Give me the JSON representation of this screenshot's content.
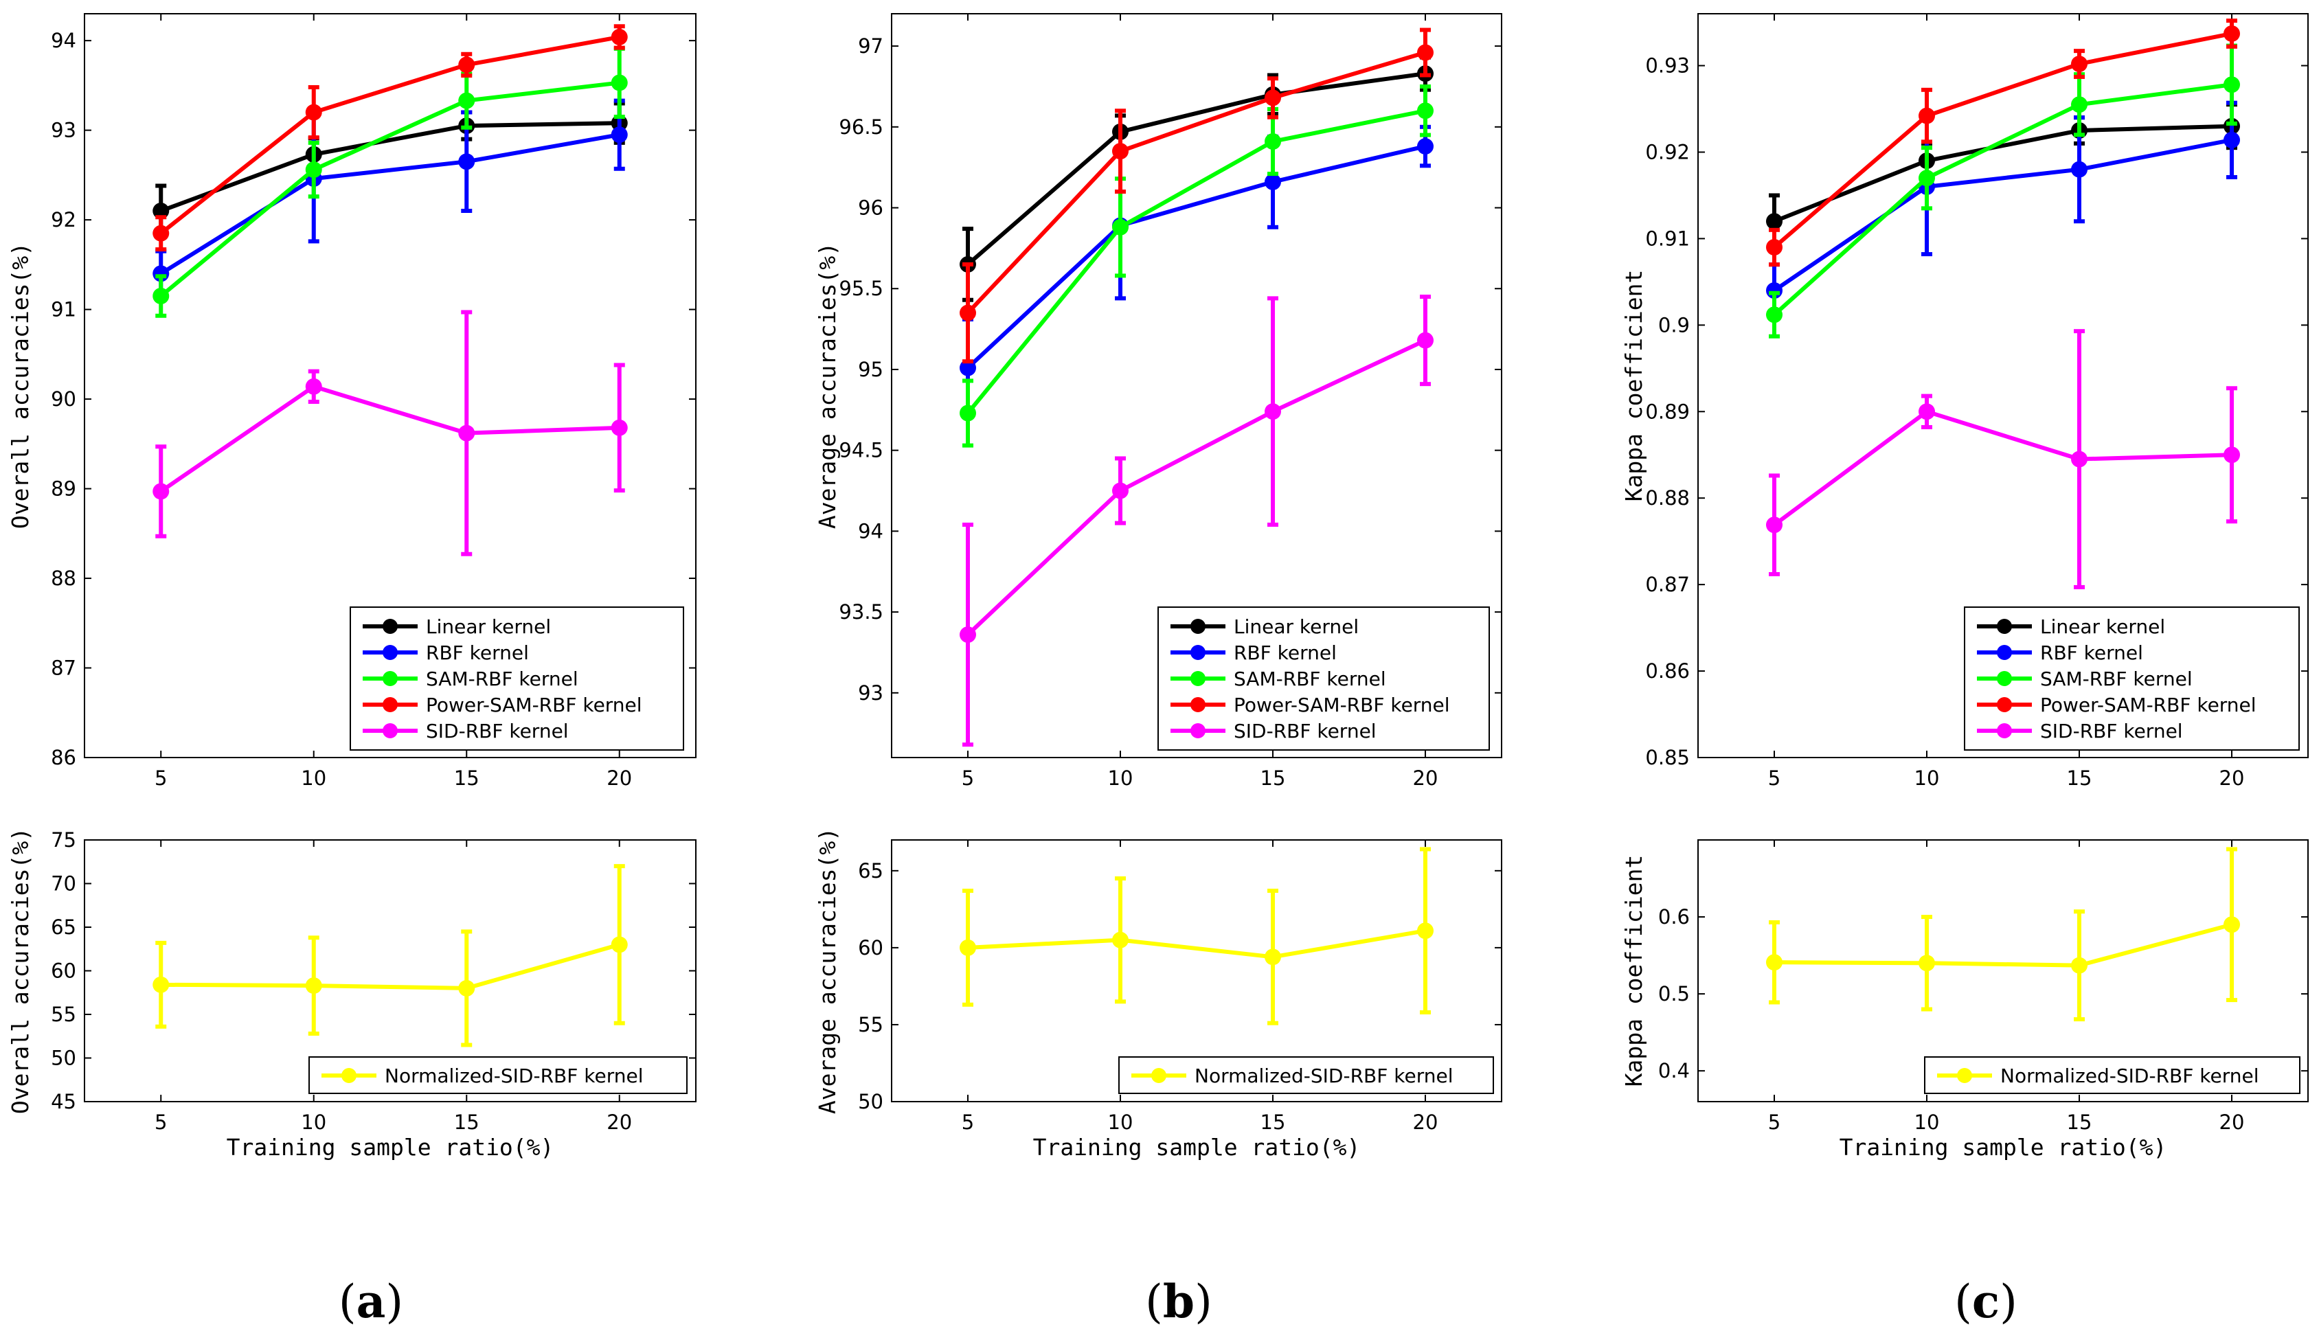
{
  "colors": {
    "Linear kernel": "#000000",
    "RBF kernel": "#0000ff",
    "SAM-RBF kernel": "#00ff00",
    "Power-SAM-RBF kernel": "#ff0000",
    "SID-RBF kernel": "#ff00ff",
    "Normalized-SID-RBF kernel": "#ffff00"
  },
  "captions": [
    {
      "open": "(",
      "letter": "a",
      "close": ")"
    },
    {
      "open": "(",
      "letter": "b",
      "close": ")"
    },
    {
      "open": "(",
      "letter": "c",
      "close": ")"
    }
  ],
  "chart_data": [
    {
      "id": "a-top",
      "type": "line",
      "ylabel": "Overall accuracies(%)",
      "xlabel": "",
      "x": [
        5,
        10,
        15,
        20
      ],
      "xlim": [
        2.5,
        22.5
      ],
      "ylim": [
        86,
        94.3
      ],
      "yticks": [
        86,
        87,
        88,
        89,
        90,
        91,
        92,
        93,
        94
      ],
      "ytick_labels": [
        "86",
        "87",
        "88",
        "89",
        "90",
        "91",
        "92",
        "93",
        "94"
      ],
      "xtick_labels": [
        "5",
        "10",
        "15",
        "20"
      ],
      "legend": "lower-right",
      "series": [
        {
          "name": "Linear kernel",
          "values": [
            92.1,
            92.73,
            93.05,
            93.08
          ],
          "err": [
            0.28,
            0.18,
            0.15,
            0.22
          ]
        },
        {
          "name": "RBF kernel",
          "values": [
            91.4,
            92.46,
            92.65,
            92.95
          ],
          "err": [
            0.25,
            0.7,
            0.55,
            0.38
          ]
        },
        {
          "name": "SAM-RBF kernel",
          "values": [
            91.15,
            92.56,
            93.33,
            93.53
          ],
          "err": [
            0.22,
            0.3,
            0.3,
            0.38
          ]
        },
        {
          "name": "Power-SAM-RBF kernel",
          "values": [
            91.85,
            93.2,
            93.73,
            94.04
          ],
          "err": [
            0.18,
            0.28,
            0.12,
            0.12
          ]
        },
        {
          "name": "SID-RBF kernel",
          "values": [
            88.97,
            90.14,
            89.62,
            89.68
          ],
          "err": [
            0.5,
            0.17,
            1.35,
            0.7
          ]
        }
      ]
    },
    {
      "id": "a-bottom",
      "type": "line",
      "ylabel": "Overall accuracies(%)",
      "xlabel": "Training sample ratio(%)",
      "x": [
        5,
        10,
        15,
        20
      ],
      "xlim": [
        2.5,
        22.5
      ],
      "ylim": [
        45,
        75
      ],
      "yticks": [
        45,
        50,
        55,
        60,
        65,
        70,
        75
      ],
      "ytick_labels": [
        "45",
        "50",
        "55",
        "60",
        "65",
        "70",
        "75"
      ],
      "xtick_labels": [
        "5",
        "10",
        "15",
        "20"
      ],
      "legend": "bottom-right",
      "series": [
        {
          "name": "Normalized-SID-RBF kernel",
          "values": [
            58.4,
            58.3,
            58.0,
            63.0
          ],
          "err": [
            4.8,
            5.5,
            6.5,
            9.0
          ]
        }
      ]
    },
    {
      "id": "b-top",
      "type": "line",
      "ylabel": "Average accuracies(%)",
      "xlabel": "",
      "x": [
        5,
        10,
        15,
        20
      ],
      "xlim": [
        2.5,
        22.5
      ],
      "ylim": [
        92.6,
        97.2
      ],
      "yticks": [
        93,
        93.5,
        94,
        94.5,
        95,
        95.5,
        96,
        96.5,
        97
      ],
      "ytick_labels": [
        "93",
        "93.5",
        "94",
        "94.5",
        "95",
        "95.5",
        "96",
        "96.5",
        "97"
      ],
      "xtick_labels": [
        "5",
        "10",
        "15",
        "20"
      ],
      "legend": "lower-right",
      "series": [
        {
          "name": "Linear kernel",
          "values": [
            95.65,
            96.47,
            96.7,
            96.83
          ],
          "err": [
            0.22,
            0.1,
            0.12,
            0.1
          ]
        },
        {
          "name": "RBF kernel",
          "values": [
            95.01,
            95.89,
            96.16,
            96.38
          ],
          "err": [
            0.3,
            0.45,
            0.28,
            0.12
          ]
        },
        {
          "name": "SAM-RBF kernel",
          "values": [
            94.73,
            95.88,
            96.41,
            96.6
          ],
          "err": [
            0.2,
            0.3,
            0.2,
            0.15
          ]
        },
        {
          "name": "Power-SAM-RBF kernel",
          "values": [
            95.35,
            96.35,
            96.68,
            96.96
          ],
          "err": [
            0.3,
            0.25,
            0.12,
            0.14
          ]
        },
        {
          "name": "SID-RBF kernel",
          "values": [
            93.36,
            94.25,
            94.74,
            95.18
          ],
          "err": [
            0.68,
            0.2,
            0.7,
            0.27
          ]
        }
      ]
    },
    {
      "id": "b-bottom",
      "type": "line",
      "ylabel": "Average accuracies(%)",
      "xlabel": "Training sample ratio(%)",
      "x": [
        5,
        10,
        15,
        20
      ],
      "xlim": [
        2.5,
        22.5
      ],
      "ylim": [
        50,
        67
      ],
      "yticks": [
        50,
        55,
        60,
        65
      ],
      "ytick_labels": [
        "50",
        "55",
        "60",
        "65"
      ],
      "xtick_labels": [
        "5",
        "10",
        "15",
        "20"
      ],
      "legend": "bottom-right",
      "series": [
        {
          "name": "Normalized-SID-RBF kernel",
          "values": [
            60.0,
            60.5,
            59.4,
            61.1
          ],
          "err": [
            3.7,
            4.0,
            4.3,
            5.3
          ]
        }
      ]
    },
    {
      "id": "c-top",
      "type": "line",
      "ylabel": "Kappa coefficient",
      "xlabel": "",
      "x": [
        5,
        10,
        15,
        20
      ],
      "xlim": [
        2.5,
        22.5
      ],
      "ylim": [
        0.85,
        0.936
      ],
      "yticks": [
        0.85,
        0.86,
        0.87,
        0.88,
        0.89,
        0.9,
        0.91,
        0.92,
        0.93
      ],
      "ytick_labels": [
        "0.85",
        "0.86",
        "0.87",
        "0.88",
        "0.89",
        "0.9",
        "0.91",
        "0.92",
        "0.93"
      ],
      "xtick_labels": [
        "5",
        "10",
        "15",
        "20"
      ],
      "legend": "lower-right",
      "series": [
        {
          "name": "Linear kernel",
          "values": [
            0.912,
            0.919,
            0.9225,
            0.923
          ],
          "err": [
            0.003,
            0.002,
            0.0015,
            0.0025
          ]
        },
        {
          "name": "RBF kernel",
          "values": [
            0.904,
            0.916,
            0.918,
            0.9214
          ],
          "err": [
            0.003,
            0.0078,
            0.006,
            0.0043
          ]
        },
        {
          "name": "SAM-RBF kernel",
          "values": [
            0.9012,
            0.917,
            0.9255,
            0.9278
          ],
          "err": [
            0.0025,
            0.0035,
            0.0035,
            0.0045
          ]
        },
        {
          "name": "Power-SAM-RBF kernel",
          "values": [
            0.909,
            0.9242,
            0.9302,
            0.9337
          ],
          "err": [
            0.002,
            0.003,
            0.0015,
            0.0015
          ]
        },
        {
          "name": "SID-RBF kernel",
          "values": [
            0.8769,
            0.89,
            0.8845,
            0.885
          ],
          "err": [
            0.0057,
            0.0018,
            0.0148,
            0.0077
          ]
        }
      ]
    },
    {
      "id": "c-bottom",
      "type": "line",
      "ylabel": "Kappa coefficient",
      "xlabel": "Training sample ratio(%)",
      "x": [
        5,
        10,
        15,
        20
      ],
      "xlim": [
        2.5,
        22.5
      ],
      "ylim": [
        0.36,
        0.7
      ],
      "yticks": [
        0.4,
        0.5,
        0.6
      ],
      "ytick_labels": [
        "0.4",
        "0.5",
        "0.6"
      ],
      "xtick_labels": [
        "5",
        "10",
        "15",
        "20"
      ],
      "legend": "bottom-right",
      "series": [
        {
          "name": "Normalized-SID-RBF kernel",
          "values": [
            0.541,
            0.54,
            0.537,
            0.59
          ],
          "err": [
            0.052,
            0.06,
            0.07,
            0.098
          ]
        }
      ]
    }
  ]
}
